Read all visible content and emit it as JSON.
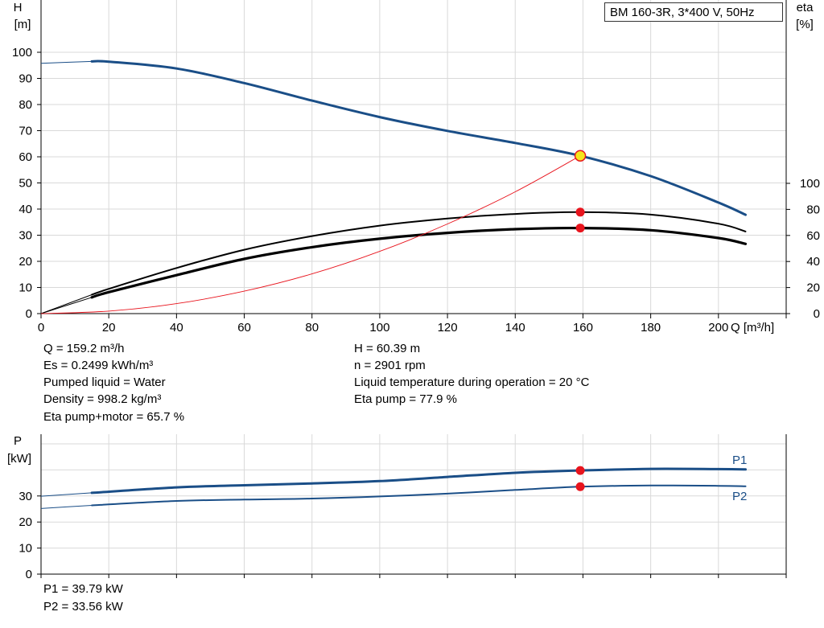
{
  "main_chart": {
    "y_left": {
      "label_line1": "H",
      "label_line2": "[m]"
    },
    "y_right": {
      "label_line1": "eta",
      "label_line2": "[%]"
    },
    "x_axis": {
      "label": "Q [m³/h]"
    },
    "model_label": "BM 160-3R, 3*400 V, 50Hz"
  },
  "info_left": [
    "Q = 159.2 m³/h",
    "Es = 0.2499 kWh/m³",
    "Pumped liquid = Water",
    "Density = 998.2 kg/m³",
    "Eta pump+motor = 65.7 %"
  ],
  "info_right": [
    "H = 60.39 m",
    "n = 2901 rpm",
    "Liquid temperature during operation = 20 °C",
    "Eta pump = 77.9 %"
  ],
  "power_chart": {
    "y_axis": {
      "label_line1": "P",
      "label_line2": "[kW]"
    },
    "series_labels": {
      "p1": "P1",
      "p2": "P2"
    }
  },
  "power_readout": [
    "P1 = 39.79 kW",
    "P2 = 33.56 kW"
  ],
  "colors": {
    "blue": "#1a4e87",
    "black": "#000000",
    "red": "#e8141d",
    "yellow": "#f5e61b",
    "grid": "#d9d9d9"
  },
  "chart_data": [
    {
      "type": "line",
      "xlabel": "Q [m³/h]",
      "ylabel": "H [m]",
      "y2label": "eta [%]",
      "xlim": [
        0,
        220
      ],
      "ylim": [
        0,
        100
      ],
      "y2lim": [
        0,
        100
      ],
      "x_ticks": [
        0,
        20,
        40,
        60,
        80,
        100,
        120,
        140,
        160,
        180,
        200
      ],
      "y_ticks": [
        0,
        10,
        20,
        30,
        40,
        50,
        60,
        70,
        80,
        90,
        100
      ],
      "y2_ticks": [
        0,
        20,
        40,
        60,
        80,
        100
      ],
      "grid": true,
      "series": [
        {
          "axis": "left",
          "color": "#1a4e87",
          "x": [
            0,
            15,
            20,
            40,
            60,
            80,
            100,
            120,
            140,
            159.2,
            180,
            200,
            208
          ],
          "y": [
            95.8,
            96.5,
            96.4,
            93.8,
            88.2,
            81.5,
            75.2,
            69.9,
            65.3,
            60.39,
            52.6,
            42.5,
            37.8
          ]
        },
        {
          "axis": "right",
          "color": "#000000",
          "x": [
            0,
            15,
            20,
            40,
            60,
            80,
            100,
            120,
            140,
            159.2,
            180,
            200,
            208
          ],
          "y": [
            0,
            14.5,
            19,
            35,
            49,
            59.5,
            67.5,
            73,
            76.5,
            77.9,
            76,
            69,
            63
          ]
        },
        {
          "axis": "right",
          "color": "#000000",
          "x": [
            0,
            15,
            20,
            40,
            60,
            80,
            100,
            120,
            140,
            159.2,
            180,
            200,
            208
          ],
          "y": [
            0,
            12.5,
            16.5,
            29.5,
            42,
            51,
            57.5,
            62,
            64.8,
            65.7,
            64,
            58,
            53.5
          ]
        },
        {
          "axis": "left",
          "color": "#e8141d",
          "x": [
            0,
            20,
            40,
            60,
            80,
            100,
            120,
            140,
            159.2
          ],
          "y": [
            0,
            0.95,
            3.8,
            8.6,
            15.2,
            23.8,
            34.3,
            46.6,
            60.39
          ]
        }
      ],
      "operating_point": {
        "q": 159.2,
        "h": 60.39,
        "eta_pump": 77.9,
        "eta_total": 65.7
      }
    },
    {
      "type": "line",
      "ylabel": "P [kW]",
      "xlim": [
        0,
        220
      ],
      "ylim": [
        0,
        50
      ],
      "y_ticks": [
        0,
        10,
        20,
        30
      ],
      "grid": true,
      "series": [
        {
          "name": "P1",
          "color": "#1a4e87",
          "x": [
            0,
            15,
            40,
            60,
            80,
            100,
            120,
            140,
            159.2,
            180,
            200,
            208
          ],
          "y": [
            29.9,
            31.2,
            33.3,
            34.1,
            34.8,
            35.7,
            37.3,
            38.9,
            39.79,
            40.4,
            40.3,
            40.2
          ]
        },
        {
          "name": "P2",
          "color": "#1a4e87",
          "x": [
            0,
            15,
            40,
            60,
            80,
            100,
            120,
            140,
            159.2,
            180,
            200,
            208
          ],
          "y": [
            25.2,
            26.4,
            28.1,
            28.6,
            29.0,
            29.8,
            30.9,
            32.3,
            33.56,
            34.0,
            33.9,
            33.7
          ]
        }
      ],
      "operating_point": {
        "q": 159.2,
        "p1": 39.79,
        "p2": 33.56
      }
    }
  ]
}
